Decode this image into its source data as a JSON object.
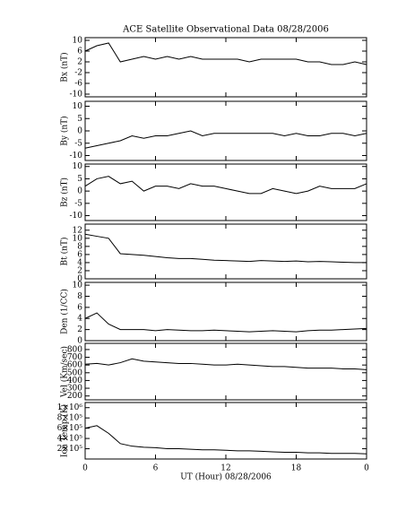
{
  "chart_data": {
    "type": "line",
    "title": "ACE Satellite Observational Data   08/28/2006",
    "xlabel": "UT (Hour)   08/28/2006",
    "xlim": [
      0,
      24
    ],
    "xticks": [
      0,
      6,
      12,
      18,
      {
        "value": 24,
        "label": "0"
      }
    ],
    "x": [
      0,
      1,
      2,
      3,
      4,
      5,
      6,
      7,
      8,
      9,
      10,
      11,
      12,
      13,
      14,
      15,
      16,
      17,
      18,
      19,
      20,
      21,
      22,
      23,
      24
    ],
    "panels": [
      {
        "ylabel": "Bx (nT)",
        "ylim": [
          -11,
          11
        ],
        "yticks": [
          -10,
          -6,
          -2,
          2,
          6,
          10
        ],
        "values": [
          6,
          8,
          9,
          2,
          3,
          4,
          3,
          4,
          3,
          4,
          3,
          3,
          3,
          3,
          2,
          3,
          3,
          3,
          3,
          2,
          2,
          1,
          1,
          2,
          1
        ]
      },
      {
        "ylabel": "By (nT)",
        "ylim": [
          -12,
          12
        ],
        "yticks": [
          -10,
          -5,
          0,
          5,
          10
        ],
        "values": [
          -7,
          -6,
          -5,
          -4,
          -2,
          -3,
          -2,
          -2,
          -1,
          0,
          -2,
          -1,
          -1,
          -1,
          -1,
          -1,
          -1,
          -2,
          -1,
          -2,
          -2,
          -1,
          -1,
          -2,
          -1
        ]
      },
      {
        "ylabel": "Bz (nT)",
        "ylim": [
          -12,
          11
        ],
        "yticks": [
          -10,
          -5,
          0,
          5,
          10
        ],
        "values": [
          2,
          5,
          6,
          3,
          4,
          0,
          2,
          2,
          1,
          3,
          2,
          2,
          1,
          0,
          -1,
          -1,
          1,
          0,
          -1,
          0,
          2,
          1,
          1,
          1,
          3
        ]
      },
      {
        "ylabel": "Bt (nT)",
        "ylim": [
          0,
          13.5
        ],
        "yticks": [
          0,
          2,
          4,
          6,
          8,
          10,
          12
        ],
        "values": [
          11,
          10.5,
          10,
          6.2,
          6,
          5.8,
          5.5,
          5.2,
          5,
          5,
          4.8,
          4.6,
          4.5,
          4.4,
          4.3,
          4.5,
          4.4,
          4.3,
          4.4,
          4.2,
          4.3,
          4.2,
          4.1,
          4,
          4
        ]
      },
      {
        "ylabel": "Den (1/CC)",
        "ylim": [
          0,
          10.5
        ],
        "yticks": [
          0,
          2,
          4,
          6,
          8,
          10
        ],
        "values": [
          4,
          5,
          3,
          2,
          2,
          2,
          1.8,
          2,
          1.9,
          1.8,
          1.8,
          1.9,
          1.8,
          1.7,
          1.6,
          1.7,
          1.8,
          1.7,
          1.6,
          1.8,
          1.9,
          1.9,
          2,
          2.1,
          2.2
        ]
      },
      {
        "ylabel": "Vel (Km/sec)",
        "ylim": [
          150,
          880
        ],
        "yticks": [
          200,
          300,
          400,
          500,
          600,
          700,
          800
        ],
        "values": [
          610,
          620,
          600,
          630,
          680,
          650,
          640,
          630,
          620,
          620,
          610,
          600,
          600,
          610,
          600,
          590,
          580,
          580,
          570,
          560,
          560,
          560,
          550,
          550,
          540
        ]
      },
      {
        "ylabel": "Ion Temp (K)",
        "ylim": [
          0,
          1100000
        ],
        "yticks": [
          {
            "value": 200000,
            "label": "2×10⁵"
          },
          {
            "value": 400000,
            "label": "4×10⁵"
          },
          {
            "value": 600000,
            "label": "6×10⁵"
          },
          {
            "value": 800000,
            "label": "8×10⁵"
          },
          {
            "value": 1000000,
            "label": "1×10⁶"
          }
        ],
        "values": [
          600000,
          650000,
          500000,
          300000,
          250000,
          230000,
          220000,
          200000,
          200000,
          190000,
          180000,
          180000,
          170000,
          160000,
          160000,
          150000,
          140000,
          130000,
          130000,
          120000,
          120000,
          110000,
          110000,
          110000,
          100000
        ]
      }
    ]
  }
}
